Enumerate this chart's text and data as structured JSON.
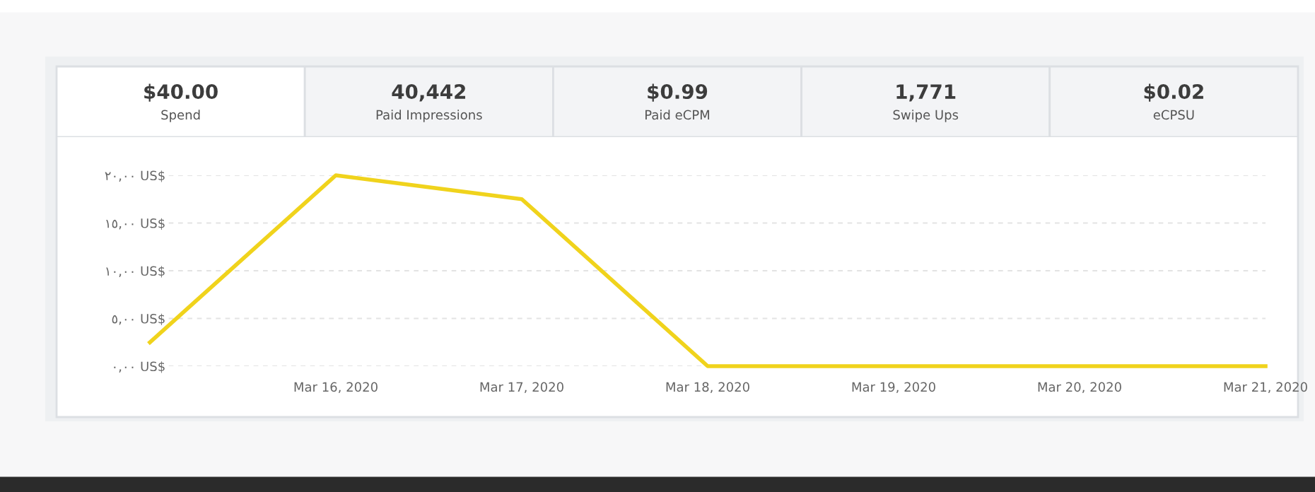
{
  "chart_data": [
    {
      "type": "other",
      "categories": [
        "Spend",
        "Paid Impressions",
        "Paid eCPM",
        "Swipe Ups",
        "eCPSU"
      ],
      "annotations": [
        "$40.00",
        "40,442",
        "$0.99",
        "1,771",
        "$0.02"
      ]
    },
    {
      "type": "line",
      "x": [
        "2020-03-15",
        "2020-03-16",
        "2020-03-17",
        "2020-03-18",
        "2020-03-19",
        "2020-03-20",
        "2020-03-21"
      ],
      "series": [
        {
          "color": "#f0d31c",
          "values": [
            2.5,
            20,
            17.5,
            0,
            0,
            0,
            0
          ]
        }
      ],
      "xlim": [
        "2020-03-15",
        "2020-03-21"
      ],
      "xticks": [
        {
          "value": "2020-03-16",
          "label": "Mar 16, 2020"
        },
        {
          "value": "2020-03-17",
          "label": "Mar 17, 2020"
        },
        {
          "value": "2020-03-18",
          "label": "Mar 18, 2020"
        },
        {
          "value": "2020-03-19",
          "label": "Mar 19, 2020"
        },
        {
          "value": "2020-03-20",
          "label": "Mar 20, 2020"
        },
        {
          "value": "2020-03-21",
          "label": "Mar 21, 2020"
        }
      ],
      "ylim": [
        0,
        20
      ],
      "yticks": [
        {
          "value": 0,
          "label": "٠,٠٠ US$"
        },
        {
          "value": 5,
          "label": "٥,٠٠ US$"
        },
        {
          "value": 10,
          "label": "١٠,٠٠ US$"
        },
        {
          "value": 15,
          "label": "١٥,٠٠ US$"
        },
        {
          "value": 20,
          "label": "٢٠,٠٠ US$"
        }
      ],
      "grid": "y",
      "marker": "none",
      "line_style": "solid"
    }
  ]
}
